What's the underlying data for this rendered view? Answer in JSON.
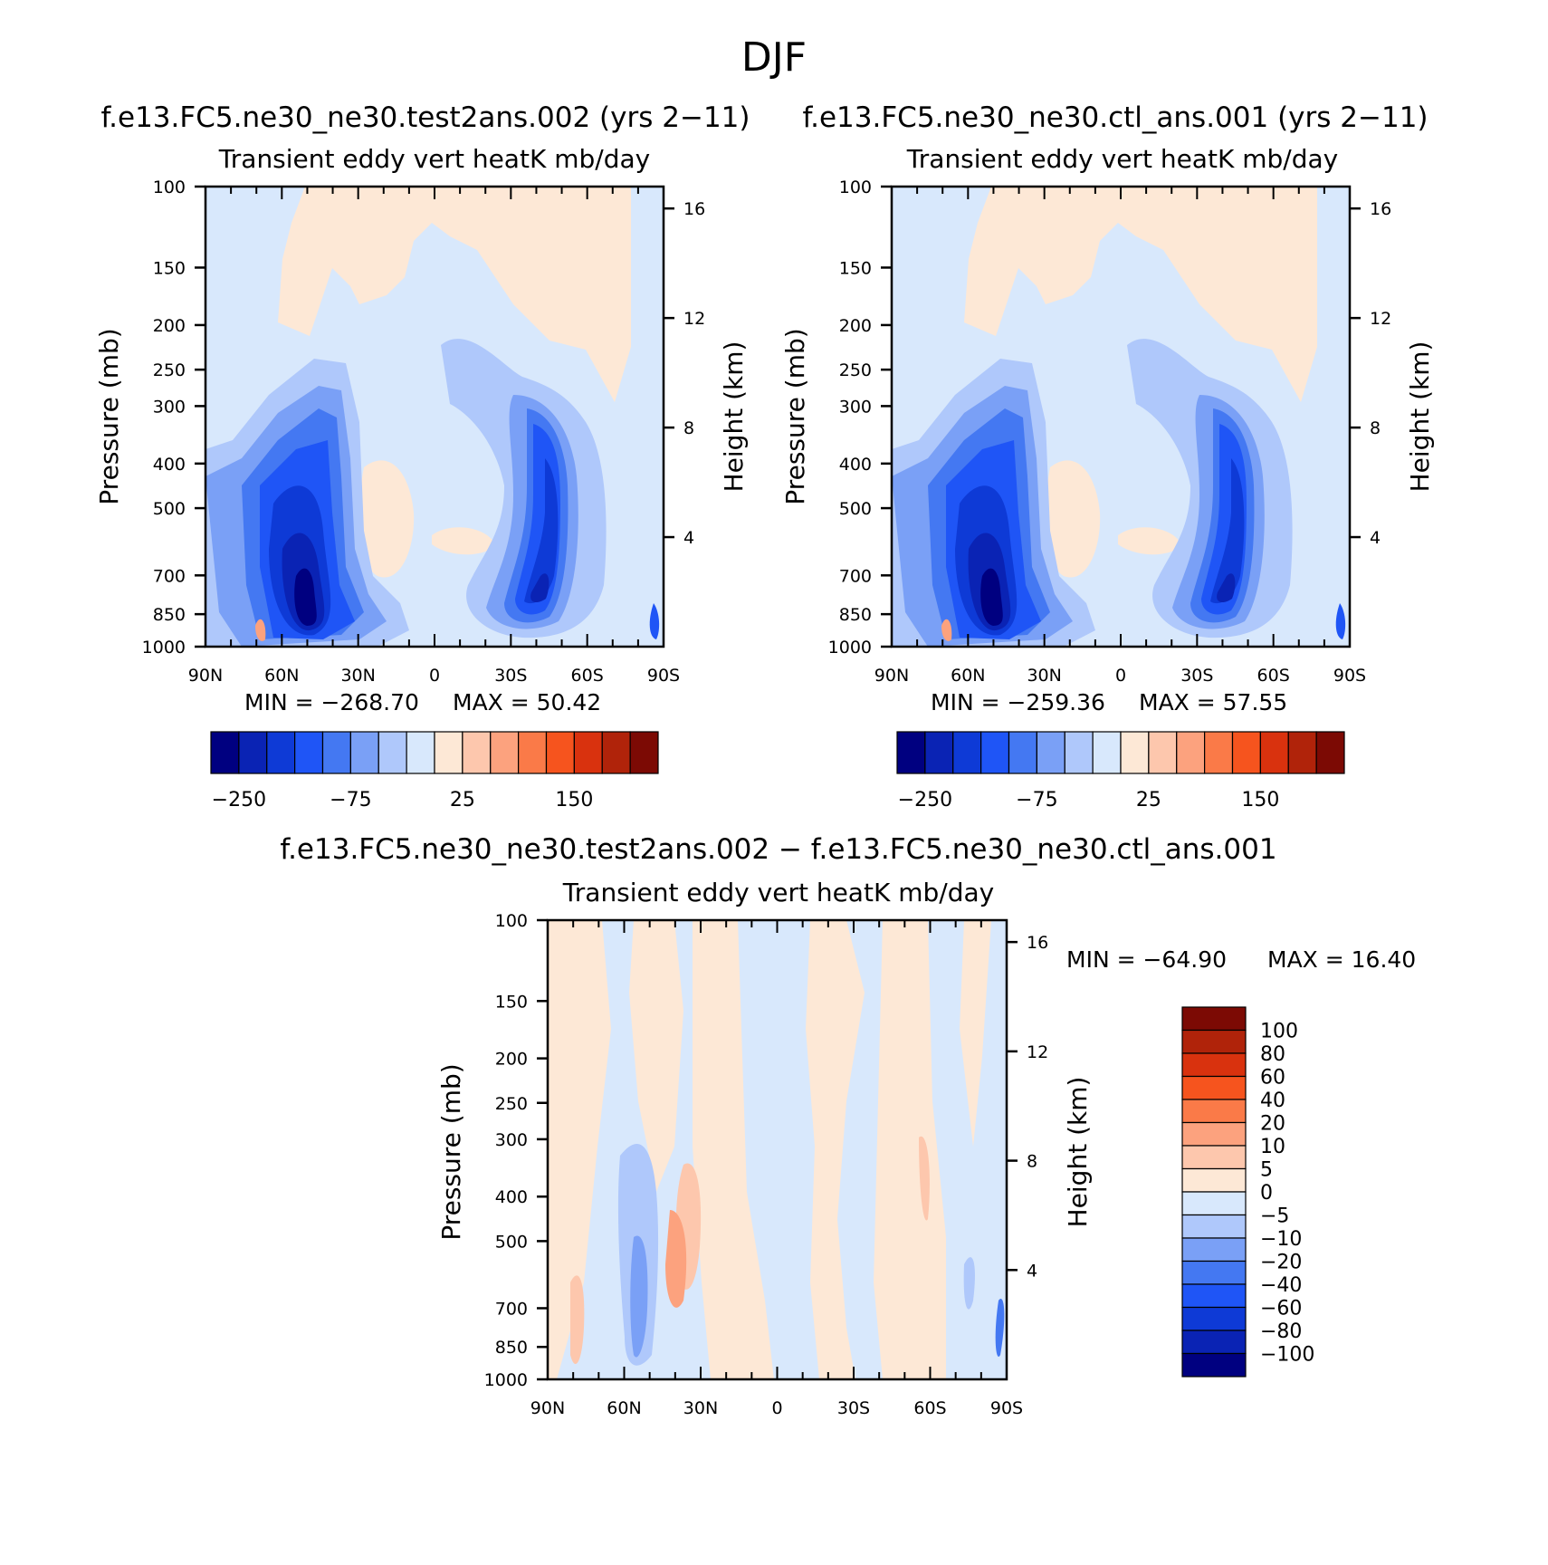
{
  "figure": {
    "title": "DJF"
  },
  "colors": {
    "abs_levels": [
      "#000080",
      "#0a23b4",
      "#0e3ad6",
      "#1f55f6",
      "#4478f2",
      "#7aa0f6",
      "#afc8fb",
      "#d8e8fc",
      "#fde8d6",
      "#fdc7ad",
      "#fca27e",
      "#fa7a48",
      "#f6541e",
      "#d9320e",
      "#b0230a",
      "#7c0a04"
    ],
    "diff_levels": [
      "#000080",
      "#0a23b4",
      "#0e3ad6",
      "#1f55f6",
      "#4478f2",
      "#7aa0f6",
      "#afc8fb",
      "#d8e8fc",
      "#fde8d6",
      "#fdc7ad",
      "#fca27e",
      "#fa7a48",
      "#f6541e",
      "#d9320e",
      "#b0230a",
      "#7c0a04"
    ]
  },
  "chart_data": [
    {
      "type": "heatmap",
      "id": "test",
      "title": "f.e13.FC5.ne30_ne30.test2ans.002 (yrs 2−11)",
      "subtitle": "Transient eddy vert heatK mb/day",
      "xlabel": "",
      "ylabel": "Pressure (mb)",
      "y2label": "Height (km)",
      "x_ticks": [
        "90N",
        "60N",
        "30N",
        "0",
        "30S",
        "60S",
        "90S"
      ],
      "y_ticks": [
        100,
        150,
        200,
        250,
        300,
        400,
        500,
        700,
        850,
        1000
      ],
      "y2_ticks": [
        4,
        8,
        12,
        16
      ],
      "ylim": [
        1000,
        100
      ],
      "yscale": "log",
      "min_label": "MIN = −268.70",
      "max_label": "MAX =  50.42",
      "colorbar_labels": [
        "−250",
        "−75",
        "25",
        "150"
      ],
      "field": [
        {
          "lat": 60,
          "p": 550,
          "value": -210
        },
        {
          "lat": 55,
          "p": 650,
          "value": -268
        },
        {
          "lat": -50,
          "p": 750,
          "value": -170
        },
        {
          "lat": -52,
          "p": 500,
          "value": -120
        },
        {
          "lat": 20,
          "p": 500,
          "value": 10
        },
        {
          "lat": -10,
          "p": 600,
          "value": 8
        }
      ]
    },
    {
      "type": "heatmap",
      "id": "ctl",
      "title": "f.e13.FC5.ne30_ne30.ctl_ans.001 (yrs 2−11)",
      "subtitle": "Transient eddy vert heatK mb/day",
      "xlabel": "",
      "ylabel": "Pressure (mb)",
      "y2label": "Height (km)",
      "x_ticks": [
        "90N",
        "60N",
        "30N",
        "0",
        "30S",
        "60S",
        "90S"
      ],
      "y_ticks": [
        100,
        150,
        200,
        250,
        300,
        400,
        500,
        700,
        850,
        1000
      ],
      "y2_ticks": [
        4,
        8,
        12,
        16
      ],
      "ylim": [
        1000,
        100
      ],
      "yscale": "log",
      "min_label": "MIN = −259.36",
      "max_label": "MAX =  57.55",
      "colorbar_labels": [
        "−250",
        "−75",
        "25",
        "150"
      ],
      "field": [
        {
          "lat": 60,
          "p": 550,
          "value": -200
        },
        {
          "lat": 55,
          "p": 700,
          "value": -259
        },
        {
          "lat": -50,
          "p": 750,
          "value": -165
        },
        {
          "lat": -52,
          "p": 500,
          "value": -115
        },
        {
          "lat": 20,
          "p": 500,
          "value": 10
        },
        {
          "lat": -10,
          "p": 600,
          "value": 8
        }
      ]
    },
    {
      "type": "heatmap",
      "id": "diff",
      "title": "f.e13.FC5.ne30_ne30.test2ans.002 − f.e13.FC5.ne30_ne30.ctl_ans.001",
      "subtitle": "Transient eddy vert heatK mb/day",
      "xlabel": "",
      "ylabel": "Pressure (mb)",
      "y2label": "Height (km)",
      "x_ticks": [
        "90N",
        "60N",
        "30N",
        "0",
        "30S",
        "60S",
        "90S"
      ],
      "y_ticks": [
        100,
        150,
        200,
        250,
        300,
        400,
        500,
        700,
        850,
        1000
      ],
      "y2_ticks": [
        4,
        8,
        12,
        16
      ],
      "ylim": [
        1000,
        100
      ],
      "yscale": "log",
      "min_label": "MIN = −64.90",
      "max_label": "MAX =  16.40",
      "colorbar_labels": [
        "100",
        "80",
        "60",
        "40",
        "20",
        "10",
        "5",
        "0",
        "−5",
        "−10",
        "−20",
        "−40",
        "−60",
        "−80",
        "−100"
      ],
      "field": [
        {
          "lat": 52,
          "p": 600,
          "value": -30
        },
        {
          "lat": 42,
          "p": 600,
          "value": 15
        },
        {
          "lat": -60,
          "p": 400,
          "value": 8
        },
        {
          "lat": 78,
          "p": 700,
          "value": 9
        }
      ]
    }
  ]
}
